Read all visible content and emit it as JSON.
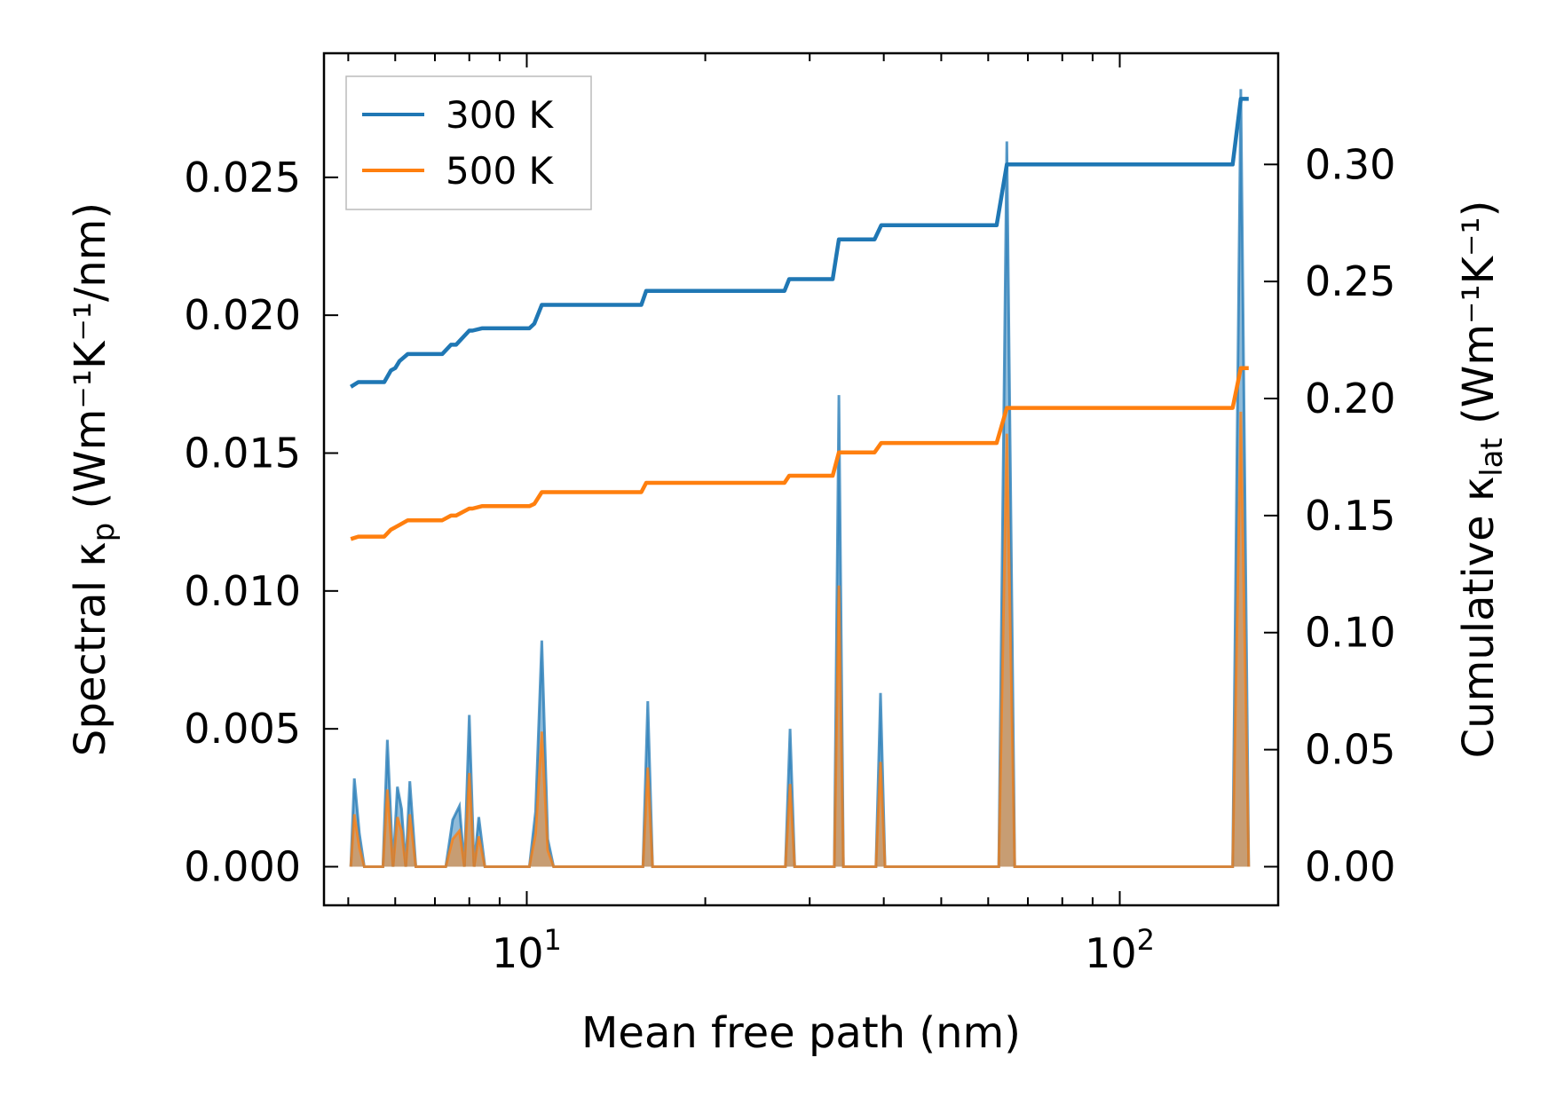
{
  "chart_data": {
    "type": "line",
    "xscale": "log",
    "xlim": [
      4.55,
      185
    ],
    "y_left_lim": [
      -0.0014,
      0.0295
    ],
    "y_right_lim": [
      -0.0165,
      0.3475
    ],
    "xlabel": "Mean free path (nm)",
    "ylabel_left": {
      "main": "Spectral κ",
      "sub": "p",
      "units": " (Wm⁻¹K⁻¹/nm)"
    },
    "ylabel_right": {
      "main": "Cumulative κ",
      "sub": "lat",
      "units": " (Wm⁻¹K⁻¹)"
    },
    "x_tick_labels": [
      {
        "value": 10,
        "base": "10",
        "exp": "1"
      },
      {
        "value": 100,
        "base": "10",
        "exp": "2"
      }
    ],
    "y_left_ticks": [
      {
        "value": 0.0,
        "label": "0.000"
      },
      {
        "value": 0.005,
        "label": "0.005"
      },
      {
        "value": 0.01,
        "label": "0.010"
      },
      {
        "value": 0.015,
        "label": "0.015"
      },
      {
        "value": 0.02,
        "label": "0.020"
      },
      {
        "value": 0.025,
        "label": "0.025"
      }
    ],
    "y_right_ticks": [
      {
        "value": 0.0,
        "label": "0.00"
      },
      {
        "value": 0.05,
        "label": "0.05"
      },
      {
        "value": 0.1,
        "label": "0.10"
      },
      {
        "value": 0.15,
        "label": "0.15"
      },
      {
        "value": 0.2,
        "label": "0.20"
      },
      {
        "value": 0.25,
        "label": "0.25"
      },
      {
        "value": 0.3,
        "label": "0.30"
      }
    ],
    "legend": {
      "position": "top-left",
      "entries": [
        "300 K",
        "500 K"
      ]
    },
    "series": [
      {
        "name": "300 K",
        "color": "#1f77b4",
        "fill_alpha": 0.5,
        "spectral": {
          "x": [
            5.05,
            5.12,
            5.22,
            5.32,
            5.55,
            5.72,
            5.82,
            5.95,
            6.05,
            6.15,
            6.25,
            6.35,
            6.5,
            7.3,
            7.5,
            7.7,
            7.85,
            8.0,
            8.15,
            8.3,
            8.5,
            8.7,
            10.1,
            10.35,
            10.6,
            10.85,
            11.1,
            15.7,
            16.0,
            16.3,
            27.3,
            27.8,
            28.3,
            33.0,
            33.6,
            34.2,
            38.8,
            39.5,
            40.2,
            62.5,
            64.5,
            66.5,
            155,
            160,
            165
          ],
          "y": [
            0,
            0.0032,
            0.0012,
            0,
            0,
            0,
            0.0046,
            0,
            0.0029,
            0.0021,
            0,
            0.0031,
            0,
            0,
            0.0017,
            0.0022,
            0,
            0.0055,
            0,
            0.0018,
            0,
            0,
            0,
            0.002,
            0.0082,
            0.001,
            0,
            0,
            0.006,
            0,
            0,
            0.005,
            0,
            0,
            0.0171,
            0,
            0,
            0.0063,
            0,
            0,
            0.0263,
            0,
            0,
            0.0282,
            0
          ]
        },
        "cumulative": {
          "x": [
            5.05,
            5.2,
            5.5,
            5.75,
            5.9,
            6.0,
            6.1,
            6.3,
            6.5,
            7.2,
            7.45,
            7.6,
            8.0,
            8.1,
            8.4,
            8.6,
            10.1,
            10.3,
            10.6,
            10.9,
            15.6,
            15.9,
            16.2,
            27.2,
            27.7,
            28.3,
            32.8,
            33.6,
            38.6,
            39.6,
            62.0,
            64.5,
            155,
            160,
            165
          ],
          "y": [
            0.205,
            0.207,
            0.207,
            0.207,
            0.212,
            0.213,
            0.216,
            0.219,
            0.219,
            0.219,
            0.223,
            0.223,
            0.229,
            0.229,
            0.23,
            0.23,
            0.23,
            0.232,
            0.24,
            0.24,
            0.24,
            0.246,
            0.246,
            0.246,
            0.251,
            0.251,
            0.251,
            0.268,
            0.268,
            0.274,
            0.274,
            0.3,
            0.3,
            0.328,
            0.328
          ]
        }
      },
      {
        "name": "500 K",
        "color": "#ff7f0e",
        "fill_alpha": 0.5,
        "spectral": {
          "x": [
            5.05,
            5.12,
            5.22,
            5.32,
            5.55,
            5.72,
            5.82,
            5.95,
            6.05,
            6.15,
            6.25,
            6.35,
            6.5,
            7.3,
            7.5,
            7.7,
            7.85,
            8.0,
            8.15,
            8.3,
            8.5,
            8.7,
            10.1,
            10.35,
            10.6,
            10.85,
            11.1,
            15.7,
            16.0,
            16.3,
            27.3,
            27.8,
            28.3,
            33.0,
            33.6,
            34.2,
            38.8,
            39.5,
            40.2,
            62.5,
            64.5,
            66.5,
            155,
            160,
            165
          ],
          "y": [
            0,
            0.0019,
            0.0007,
            0,
            0,
            0,
            0.0028,
            0,
            0.0018,
            0.0013,
            0,
            0.0019,
            0,
            0,
            0.001,
            0.0013,
            0,
            0.0034,
            0,
            0.0011,
            0,
            0,
            0,
            0.0012,
            0.0049,
            0.0006,
            0,
            0,
            0.0036,
            0,
            0,
            0.003,
            0,
            0,
            0.0102,
            0,
            0,
            0.0038,
            0,
            0,
            0.0157,
            0,
            0,
            0.0165,
            0
          ]
        },
        "cumulative": {
          "x": [
            5.05,
            5.2,
            5.5,
            5.75,
            5.9,
            6.0,
            6.1,
            6.3,
            6.5,
            7.2,
            7.45,
            7.6,
            8.0,
            8.1,
            8.4,
            8.6,
            10.1,
            10.3,
            10.6,
            10.9,
            15.6,
            15.9,
            16.2,
            27.2,
            27.7,
            28.3,
            32.8,
            33.6,
            38.6,
            39.6,
            62.0,
            64.5,
            155,
            160,
            165
          ],
          "y": [
            0.14,
            0.141,
            0.141,
            0.141,
            0.144,
            0.145,
            0.146,
            0.148,
            0.148,
            0.148,
            0.15,
            0.15,
            0.153,
            0.153,
            0.154,
            0.154,
            0.154,
            0.155,
            0.16,
            0.16,
            0.16,
            0.164,
            0.164,
            0.164,
            0.167,
            0.167,
            0.167,
            0.177,
            0.177,
            0.181,
            0.181,
            0.196,
            0.196,
            0.213,
            0.213
          ]
        }
      }
    ]
  }
}
